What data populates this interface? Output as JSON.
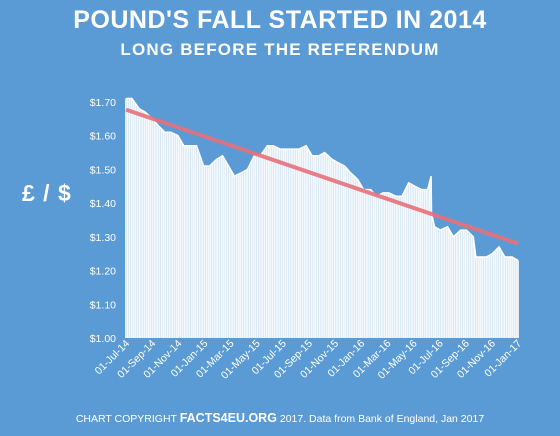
{
  "header": {
    "title": "POUND'S FALL STARTED IN 2014",
    "subtitle": "LONG BEFORE THE REFERENDUM"
  },
  "colors": {
    "background": "#5b9bd5",
    "bars": "#ffffff",
    "trendline": "#e8707a"
  },
  "footer": {
    "prefix": "CHART COPYRIGHT",
    "brand": "FACTS4EU.ORG",
    "suffix": "2017.  Data from Bank of England, Jan 2017"
  },
  "chart_data": {
    "type": "area",
    "ylabel": "£ / $",
    "ylim": [
      1.0,
      1.75
    ],
    "y_ticks": [
      "$1.00",
      "$1.10",
      "$1.20",
      "$1.30",
      "$1.40",
      "$1.50",
      "$1.60",
      "$1.70"
    ],
    "y_tick_values": [
      1.0,
      1.1,
      1.2,
      1.3,
      1.4,
      1.5,
      1.6,
      1.7
    ],
    "x_ticks": [
      "01-Jul-14",
      "01-Sep-14",
      "01-Nov-14",
      "01-Jan-15",
      "01-Mar-15",
      "01-May-15",
      "01-Jul-15",
      "01-Sep-15",
      "01-Nov-15",
      "01-Jan-16",
      "01-Mar-16",
      "01-May-16",
      "01-Jul-16",
      "01-Sep-16",
      "01-Nov-16",
      "01-Jan-17"
    ],
    "grid": false,
    "series": [
      {
        "type": "area",
        "x": [
          "2014-07-01",
          "2014-07-15",
          "2014-08-01",
          "2014-08-15",
          "2014-09-01",
          "2014-09-15",
          "2014-10-01",
          "2014-10-15",
          "2014-11-01",
          "2014-11-15",
          "2014-12-01",
          "2014-12-15",
          "2015-01-01",
          "2015-01-15",
          "2015-02-01",
          "2015-02-15",
          "2015-03-01",
          "2015-03-15",
          "2015-04-01",
          "2015-04-15",
          "2015-05-01",
          "2015-05-15",
          "2015-06-01",
          "2015-06-15",
          "2015-07-01",
          "2015-07-15",
          "2015-08-01",
          "2015-08-15",
          "2015-09-01",
          "2015-09-15",
          "2015-10-01",
          "2015-10-15",
          "2015-11-01",
          "2015-11-15",
          "2015-12-01",
          "2015-12-15",
          "2016-01-01",
          "2016-01-15",
          "2016-02-01",
          "2016-02-15",
          "2016-03-01",
          "2016-03-15",
          "2016-04-01",
          "2016-04-15",
          "2016-05-01",
          "2016-05-15",
          "2016-06-01",
          "2016-06-15",
          "2016-06-23",
          "2016-06-24",
          "2016-07-01",
          "2016-07-15",
          "2016-08-01",
          "2016-08-15",
          "2016-09-01",
          "2016-09-15",
          "2016-10-01",
          "2016-10-07",
          "2016-10-15",
          "2016-11-01",
          "2016-11-15",
          "2016-12-01",
          "2016-12-15",
          "2017-01-01",
          "2017-01-15"
        ],
        "values": [
          1.71,
          1.71,
          1.68,
          1.67,
          1.65,
          1.63,
          1.61,
          1.61,
          1.6,
          1.57,
          1.57,
          1.57,
          1.51,
          1.51,
          1.53,
          1.54,
          1.51,
          1.48,
          1.49,
          1.5,
          1.54,
          1.54,
          1.57,
          1.57,
          1.56,
          1.56,
          1.56,
          1.56,
          1.57,
          1.54,
          1.54,
          1.55,
          1.53,
          1.52,
          1.51,
          1.49,
          1.47,
          1.44,
          1.44,
          1.42,
          1.43,
          1.43,
          1.42,
          1.42,
          1.46,
          1.45,
          1.44,
          1.44,
          1.48,
          1.37,
          1.33,
          1.32,
          1.33,
          1.3,
          1.32,
          1.32,
          1.3,
          1.24,
          1.24,
          1.24,
          1.25,
          1.27,
          1.24,
          1.24,
          1.23
        ]
      },
      {
        "type": "line",
        "x": [
          "2014-07-01",
          "2017-01-15"
        ],
        "values": [
          1.677,
          1.28
        ]
      }
    ]
  }
}
